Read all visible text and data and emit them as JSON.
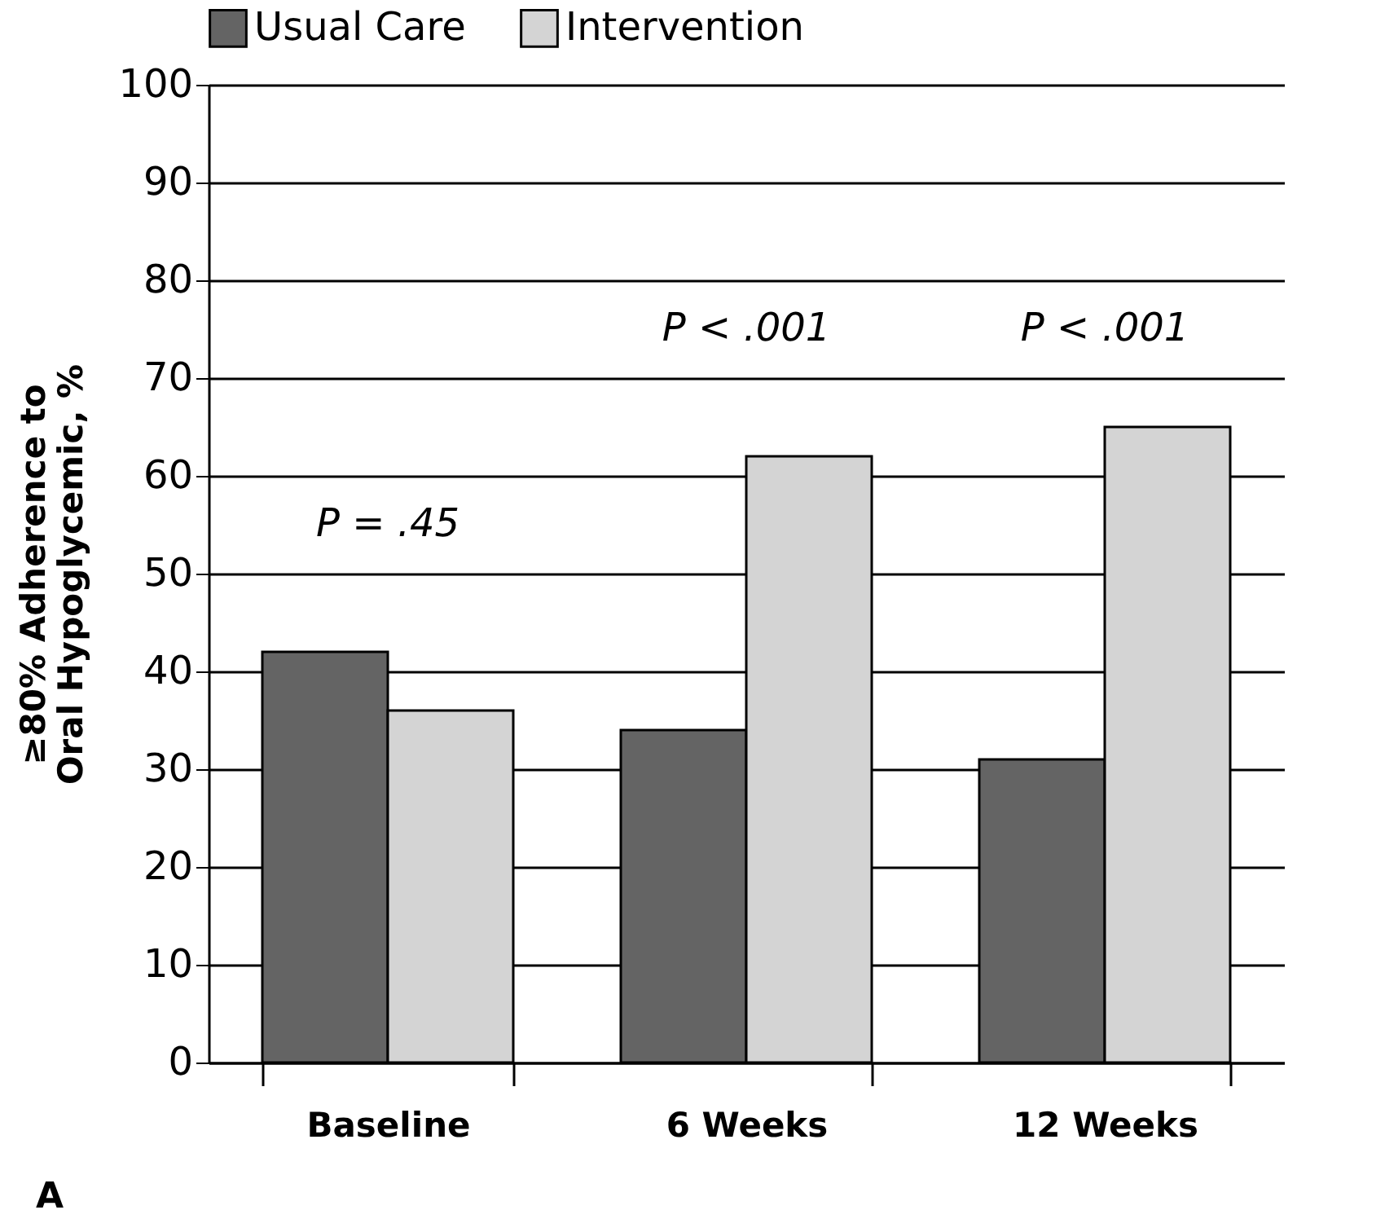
{
  "chart_data": {
    "type": "bar",
    "ylabel": "≥80% Adherence to Oral Hypoglycemic, %",
    "categories": [
      "Baseline",
      "6 Weeks",
      "12 Weeks"
    ],
    "series": [
      {
        "name": "Usual Care",
        "color": "#646464",
        "values": [
          42,
          34,
          31
        ]
      },
      {
        "name": "Intervention",
        "color": "#d4d4d4",
        "values": [
          36,
          62,
          65
        ]
      }
    ],
    "ylim": [
      0,
      100
    ],
    "yticks": [
      0,
      10,
      20,
      30,
      40,
      50,
      60,
      70,
      80,
      90,
      100
    ],
    "grid": "y",
    "legend": "top",
    "annotations": [
      "P = .45",
      "P < .001",
      "P < .001",
      "A"
    ]
  }
}
